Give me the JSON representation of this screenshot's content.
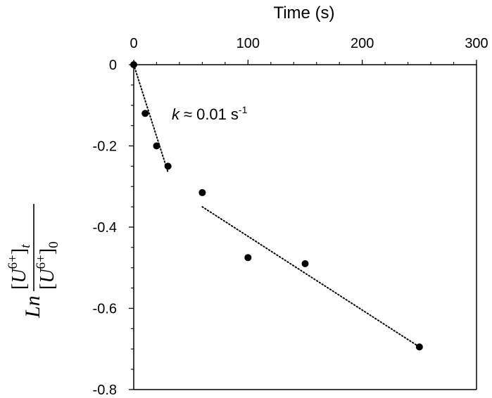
{
  "chart_data": {
    "type": "scatter",
    "title": "",
    "xlabel": "Time (s)",
    "ylabel": {
      "prefix": "Ln",
      "numerator_species": "U",
      "numerator_charge": "6+",
      "numerator_subscript": "t",
      "denominator_species": "U",
      "denominator_charge": "6+",
      "denominator_subscript": "0"
    },
    "x_axis_position": "top",
    "xlim": [
      0,
      300
    ],
    "ylim": [
      -0.8,
      0
    ],
    "x_ticks": [
      0,
      100,
      200,
      300
    ],
    "x_tick_labels": [
      "0",
      "100",
      "200",
      "300"
    ],
    "y_ticks": [
      0,
      -0.2,
      -0.4,
      -0.6,
      -0.8
    ],
    "y_tick_labels": [
      "0",
      "-0.2",
      "-0.4",
      "-0.6",
      "-0.8"
    ],
    "grid": false,
    "legend": "none",
    "series": [
      {
        "x": [
          0,
          10,
          20,
          30,
          60,
          100,
          150,
          250
        ],
        "y": [
          0,
          -0.12,
          -0.2,
          -0.25,
          -0.315,
          -0.475,
          -0.49,
          -0.695
        ],
        "marker_color": "#000000"
      }
    ],
    "trendlines": [
      {
        "style": "dotted",
        "x": [
          0,
          30
        ],
        "y": [
          0,
          -0.265
        ]
      },
      {
        "style": "dotted",
        "x": [
          60,
          250
        ],
        "y": [
          -0.35,
          -0.695
        ]
      }
    ],
    "annotations": [
      {
        "symbol": "k",
        "relation": "≈",
        "value": "0.01",
        "unit": "s",
        "unit_exponent": "-1"
      }
    ]
  }
}
